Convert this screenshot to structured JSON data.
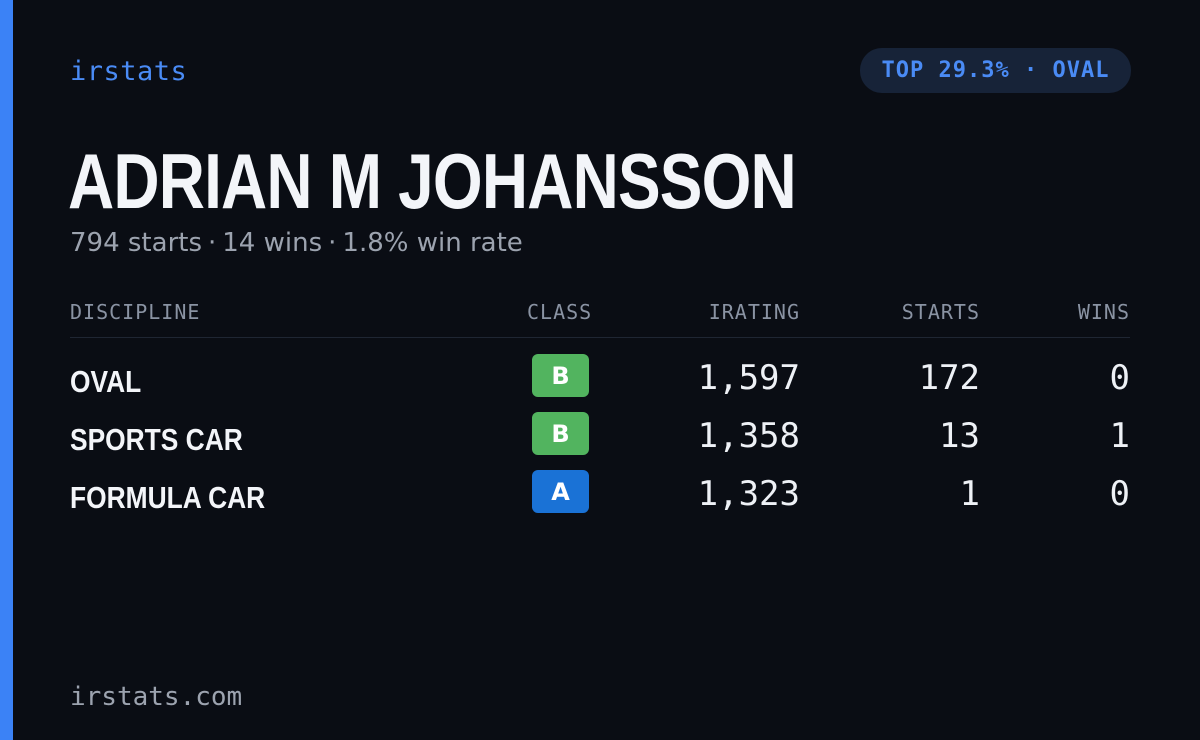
{
  "brand": "irstats",
  "rank_badge": "TOP 29.3% · OVAL",
  "driver": {
    "name": "ADRIAN M JOHANSSON",
    "summary": [
      "794 starts",
      "14 wins",
      "1.8% win rate"
    ],
    "separator": "·"
  },
  "table": {
    "headers": {
      "discipline": "DISCIPLINE",
      "class": "CLASS",
      "irating": "IRATING",
      "starts": "STARTS",
      "wins": "WINS"
    },
    "rows": [
      {
        "discipline": "OVAL",
        "class": "B",
        "class_color": "#52b45f",
        "irating": "1,597",
        "starts": "172",
        "wins": "0"
      },
      {
        "discipline": "SPORTS CAR",
        "class": "B",
        "class_color": "#52b45f",
        "irating": "1,358",
        "starts": "13",
        "wins": "1"
      },
      {
        "discipline": "FORMULA CAR",
        "class": "A",
        "class_color": "#1a72d6",
        "irating": "1,323",
        "starts": "1",
        "wins": "0"
      }
    ]
  },
  "footer": "irstats.com",
  "colors": {
    "accent": "#3b82f6",
    "background": "#0a0d14"
  }
}
